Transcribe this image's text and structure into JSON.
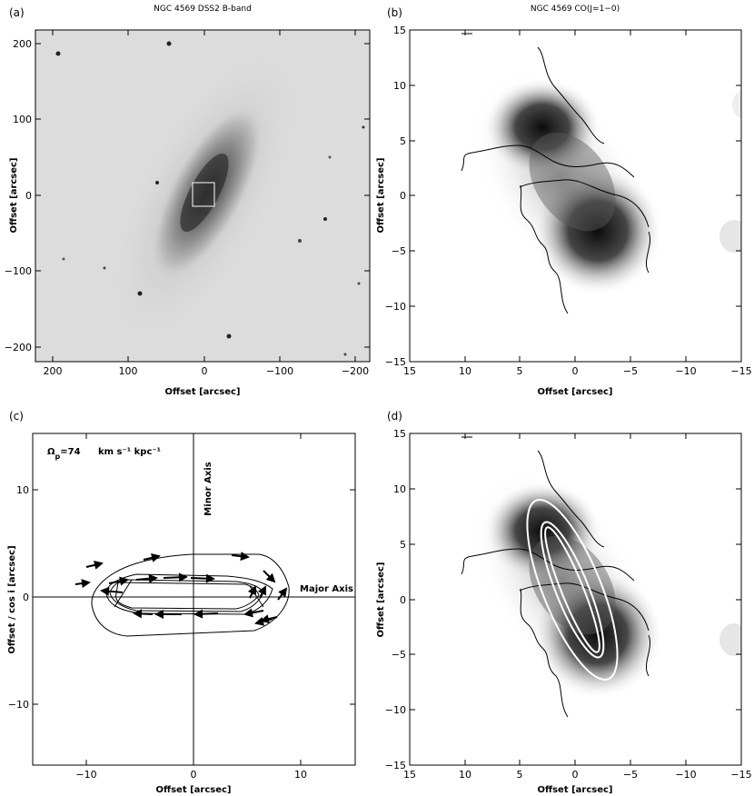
{
  "panels": {
    "a": {
      "label": "(a)",
      "title": "NGC 4569 DSS2 B-band",
      "xlabel": "Offset [arcsec]",
      "ylabel": "Offset [arcsec]",
      "xticks": [
        "200",
        "100",
        "0",
        "−100",
        "−200"
      ],
      "yticks": [
        "200",
        "100",
        "0",
        "−100",
        "−200"
      ]
    },
    "b": {
      "label": "(b)",
      "title": "NGC 4569 CO(J=1−0)",
      "xlabel": "Offset [arcsec]",
      "ylabel": "Offset [arcsec]",
      "xticks": [
        "15",
        "10",
        "5",
        "0",
        "−5",
        "−10",
        "−15"
      ],
      "yticks": [
        "15",
        "10",
        "5",
        "0",
        "−5",
        "−10",
        "−15"
      ]
    },
    "c": {
      "label": "(c)",
      "annotation_omega": "Ω",
      "annotation_sub": "p",
      "annotation_value": "=74",
      "annotation_units": "km s⁻¹ kpc⁻¹",
      "minor_axis": "Minor Axis",
      "major_axis": "Major Axis",
      "xlabel": "Offset [arcsec]",
      "ylabel": "Offset / cos i [arcsec]",
      "xticks": [
        "−10",
        "0",
        "10"
      ],
      "yticks": [
        "10",
        "0",
        "−10"
      ]
    },
    "d": {
      "label": "(d)",
      "xlabel": "Offset [arcsec]",
      "ylabel": "Offset [arcsec]",
      "xticks": [
        "15",
        "10",
        "5",
        "0",
        "−5",
        "−10",
        "−15"
      ],
      "yticks": [
        "15",
        "10",
        "5",
        "0",
        "−5",
        "−10",
        "−15"
      ]
    }
  }
}
